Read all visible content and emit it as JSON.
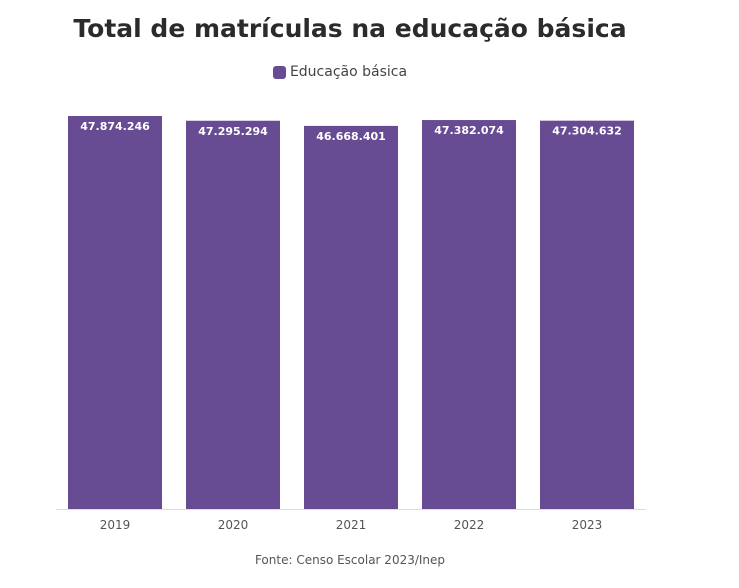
{
  "colors": {
    "bar": "#674b93",
    "axis": "#dddddd",
    "label_text": "#ffffff",
    "tick_text": "#555555"
  },
  "chart_data": {
    "type": "bar",
    "title": "Total de matrículas na educação básica",
    "categories": [
      "2019",
      "2020",
      "2021",
      "2022",
      "2023"
    ],
    "series": [
      {
        "name": "Educação básica",
        "values": [
          47874246,
          47295294,
          46668401,
          47382074,
          47304632
        ]
      }
    ],
    "data_labels": [
      "47.874.246",
      "47.295.294",
      "46.668.401",
      "47.382.074",
      "47.304.632"
    ],
    "ylim": [
      0,
      47874246
    ],
    "legend_position": "top-center",
    "grid": false,
    "source": "Fonte: Censo Escolar 2023/Inep"
  }
}
